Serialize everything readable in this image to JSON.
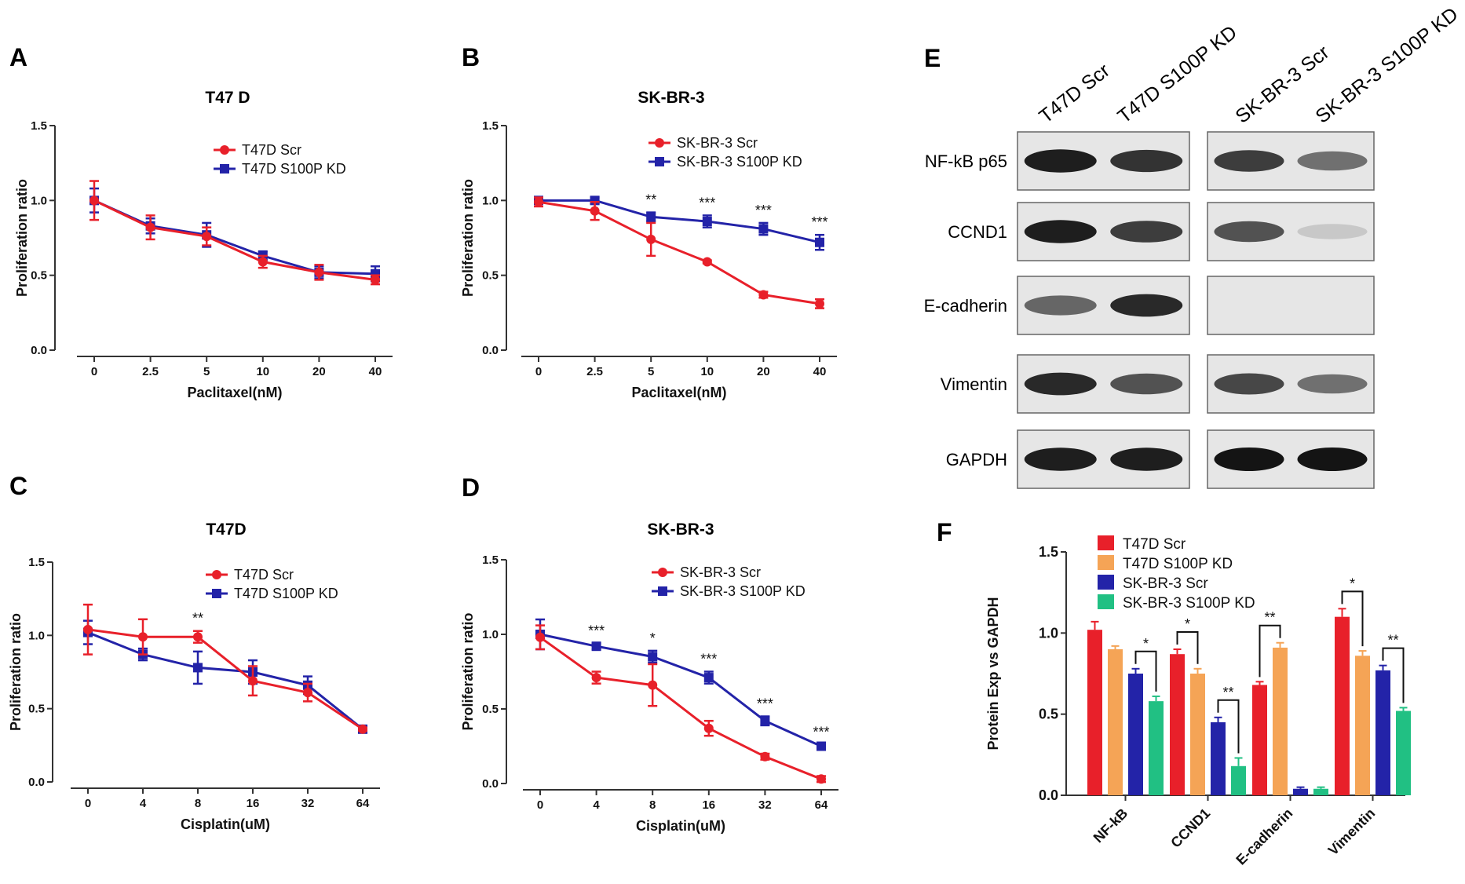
{
  "figure": {
    "panel_labels": [
      "A",
      "B",
      "C",
      "D",
      "E",
      "F"
    ]
  },
  "colors": {
    "red": "#e8202a",
    "blue": "#2323a8",
    "orange": "#f5a456",
    "green": "#21c083",
    "axis": "#333333"
  },
  "chart_data": [
    {
      "id": "A",
      "type": "line",
      "title": "T47 D",
      "xlabel": "Paclitaxel(nM)",
      "ylabel": "Proliferation ratio",
      "categories": [
        "0",
        "2.5",
        "5",
        "10",
        "20",
        "40"
      ],
      "yticks": [
        "0.0",
        "0.5",
        "1.0",
        "1.5"
      ],
      "ylim": [
        0,
        1.5
      ],
      "series": [
        {
          "name": "T47D Scr",
          "color": "red",
          "marker": "circle",
          "values": [
            1.0,
            0.82,
            0.76,
            0.59,
            0.52,
            0.47
          ],
          "errors": [
            0.13,
            0.08,
            0.06,
            0.04,
            0.05,
            0.03
          ]
        },
        {
          "name": "T47D S100P KD",
          "color": "blue",
          "marker": "square",
          "values": [
            1.0,
            0.83,
            0.77,
            0.63,
            0.52,
            0.51
          ],
          "errors": [
            0.08,
            0.05,
            0.08,
            0.03,
            0.04,
            0.05
          ]
        }
      ],
      "significance": [
        "",
        "",
        "",
        "",
        "",
        ""
      ]
    },
    {
      "id": "B",
      "type": "line",
      "title": "SK-BR-3",
      "xlabel": "Paclitaxel(nM)",
      "ylabel": "Proliferation ratio",
      "categories": [
        "0",
        "2.5",
        "5",
        "10",
        "20",
        "40"
      ],
      "yticks": [
        "0.0",
        "0.5",
        "1.0",
        "1.5"
      ],
      "ylim": [
        0,
        1.5
      ],
      "series": [
        {
          "name": "SK-BR-3 Scr",
          "color": "red",
          "marker": "circle",
          "values": [
            0.99,
            0.93,
            0.74,
            0.59,
            0.37,
            0.31
          ],
          "errors": [
            0.03,
            0.06,
            0.11,
            0.01,
            0.02,
            0.03
          ]
        },
        {
          "name": "SK-BR-3 S100P KD",
          "color": "blue",
          "marker": "square",
          "values": [
            1.0,
            1.0,
            0.89,
            0.86,
            0.81,
            0.72
          ],
          "errors": [
            0.02,
            0.02,
            0.03,
            0.04,
            0.04,
            0.05
          ]
        }
      ],
      "significance": [
        "",
        "",
        "**",
        "***",
        "***",
        "***"
      ]
    },
    {
      "id": "C",
      "type": "line",
      "title": "T47D",
      "xlabel": "Cisplatin(uM)",
      "ylabel": "Proliferation ratio",
      "categories": [
        "0",
        "4",
        "8",
        "16",
        "32",
        "64"
      ],
      "yticks": [
        "0.0",
        "0.5",
        "1.0",
        "1.5"
      ],
      "ylim": [
        0,
        1.5
      ],
      "series": [
        {
          "name": "T47D Scr",
          "color": "red",
          "marker": "circle",
          "values": [
            1.04,
            0.99,
            0.99,
            0.69,
            0.61,
            0.36
          ],
          "errors": [
            0.17,
            0.12,
            0.04,
            0.1,
            0.06,
            0.01
          ]
        },
        {
          "name": "T47D S100P KD",
          "color": "blue",
          "marker": "square",
          "values": [
            1.02,
            0.87,
            0.78,
            0.75,
            0.66,
            0.36
          ],
          "errors": [
            0.08,
            0.04,
            0.11,
            0.08,
            0.06,
            0.01
          ]
        }
      ],
      "significance": [
        "",
        "",
        "**",
        "",
        "",
        ""
      ]
    },
    {
      "id": "D",
      "type": "line",
      "title": "SK-BR-3",
      "xlabel": "Cisplatin(uM)",
      "ylabel": "Proliferation ratio",
      "categories": [
        "0",
        "4",
        "8",
        "16",
        "32",
        "64"
      ],
      "yticks": [
        "0.0",
        "0.5",
        "1.0",
        "1.5"
      ],
      "ylim": [
        0,
        1.5
      ],
      "series": [
        {
          "name": "SK-BR-3 Scr",
          "color": "red",
          "marker": "circle",
          "values": [
            0.98,
            0.71,
            0.66,
            0.37,
            0.18,
            0.03
          ],
          "errors": [
            0.08,
            0.04,
            0.14,
            0.05,
            0.02,
            0.02
          ]
        },
        {
          "name": "SK-BR-3 S100P KD",
          "color": "blue",
          "marker": "square",
          "values": [
            1.0,
            0.92,
            0.85,
            0.71,
            0.42,
            0.25
          ],
          "errors": [
            0.1,
            0.02,
            0.04,
            0.04,
            0.03,
            0.01
          ]
        }
      ],
      "significance": [
        "",
        "***",
        "*",
        "***",
        "***",
        "***"
      ]
    },
    {
      "id": "F",
      "type": "bar",
      "xlabel": "",
      "ylabel": "Protein Exp vs GAPDH",
      "categories": [
        "NF-kB",
        "CCND1",
        "E-cadherin",
        "Vimentin"
      ],
      "yticks": [
        "0.0",
        "0.5",
        "1.0",
        "1.5"
      ],
      "ylim": [
        0,
        1.5
      ],
      "series": [
        {
          "name": "T47D Scr",
          "color": "red",
          "values": [
            1.02,
            0.87,
            0.68,
            1.1
          ],
          "errors": [
            0.05,
            0.03,
            0.02,
            0.05
          ]
        },
        {
          "name": "T47D S100P KD",
          "color": "orange",
          "values": [
            0.9,
            0.75,
            0.91,
            0.86
          ],
          "errors": [
            0.02,
            0.03,
            0.03,
            0.03
          ]
        },
        {
          "name": "SK-BR-3 Scr",
          "color": "blue",
          "values": [
            0.75,
            0.45,
            0.04,
            0.77
          ],
          "errors": [
            0.03,
            0.03,
            0.01,
            0.03
          ]
        },
        {
          "name": "SK-BR-3 S100P KD",
          "color": "green",
          "values": [
            0.58,
            0.18,
            0.04,
            0.52
          ],
          "errors": [
            0.03,
            0.05,
            0.01,
            0.02
          ]
        }
      ],
      "brackets": [
        {
          "category": 0,
          "from": 2,
          "to": 3,
          "label": "*"
        },
        {
          "category": 1,
          "from": 0,
          "to": 1,
          "label": "*"
        },
        {
          "category": 1,
          "from": 2,
          "to": 3,
          "label": "**"
        },
        {
          "category": 2,
          "from": 0,
          "to": 1,
          "label": "**"
        },
        {
          "category": 3,
          "from": 0,
          "to": 1,
          "label": "*"
        },
        {
          "category": 3,
          "from": 2,
          "to": 3,
          "label": "**"
        }
      ]
    }
  ],
  "western_blot": {
    "lanes": [
      "T47D Scr",
      "T47D S100P KD",
      "SK-BR-3 Scr",
      "SK-BR-3 S100P KD"
    ],
    "proteins": [
      "NF-kB p65",
      "CCND1",
      "E-cadherin",
      "Vimentin",
      "GAPDH"
    ],
    "band_intensity": [
      [
        0.95,
        0.85,
        0.8,
        0.55
      ],
      [
        0.95,
        0.8,
        0.7,
        0.12
      ],
      [
        0.6,
        0.9,
        0.0,
        0.0
      ],
      [
        0.9,
        0.7,
        0.75,
        0.55
      ],
      [
        0.95,
        0.95,
        1.0,
        1.0
      ]
    ]
  }
}
